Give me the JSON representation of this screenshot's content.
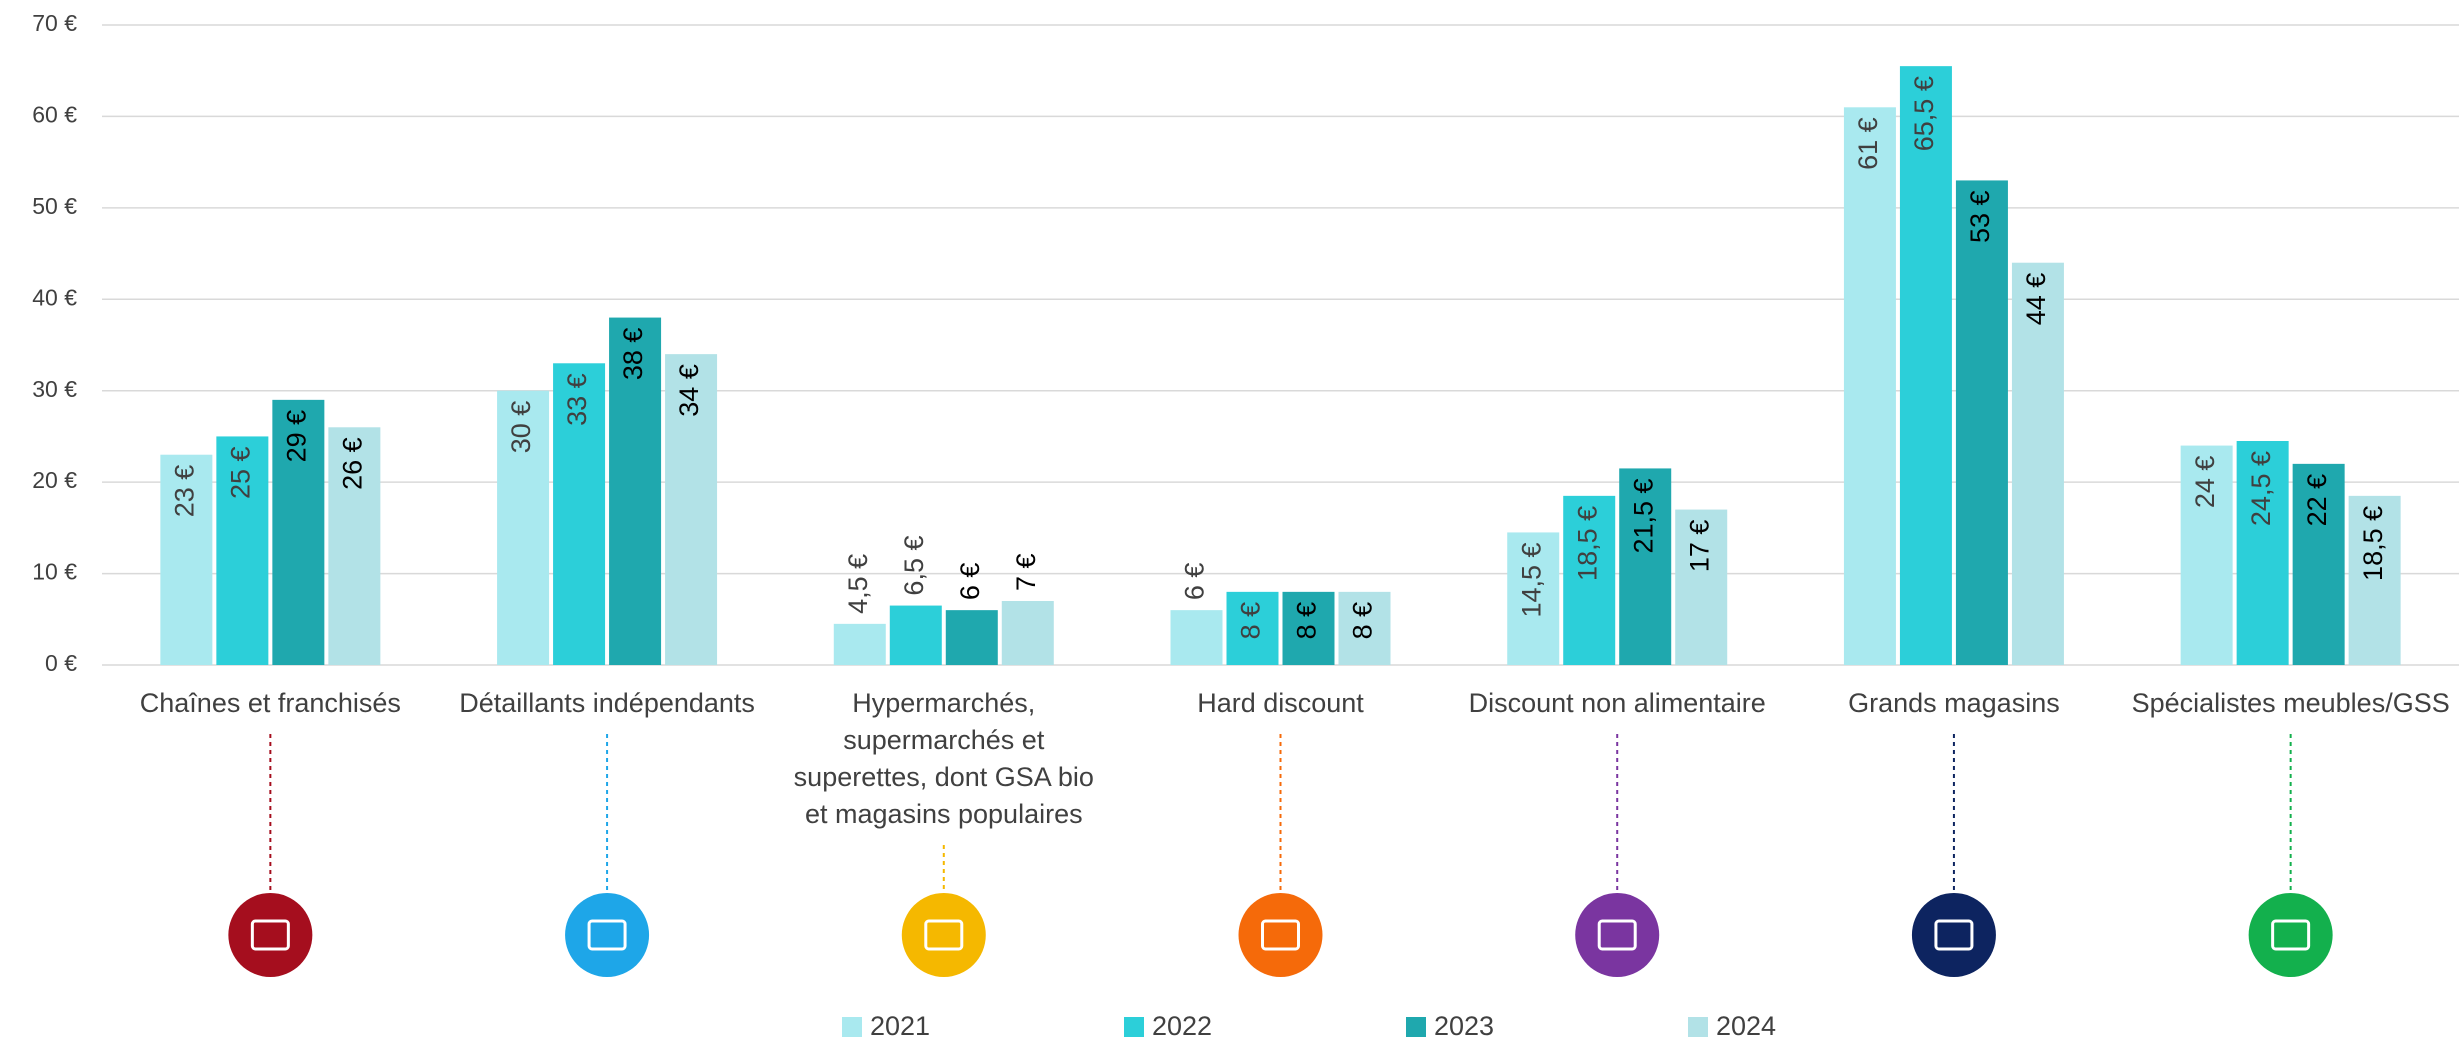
{
  "chart_data": {
    "type": "bar",
    "categories": [
      "Chaînes et franchisés",
      "Détaillants indépendants",
      "Hypermarchés, supermarchés et superettes, dont GSA bio et magasins populaires",
      "Hard discount",
      "Discount non alimentaire",
      "Grands magasins",
      "Spécialistes meubles/GSS"
    ],
    "series": [
      {
        "name": "2021",
        "color": "#a9e9ef",
        "label_color": "#404040",
        "values": [
          23,
          30,
          4.5,
          6,
          14.5,
          61,
          24
        ],
        "value_labels": [
          "23 €",
          "30 €",
          "4,5 €",
          "6 €",
          "14,5 €",
          "61 €",
          "24 €"
        ]
      },
      {
        "name": "2022",
        "color": "#2ccfd9",
        "label_color": "#404040",
        "values": [
          25,
          33,
          6.5,
          8,
          18.5,
          65.5,
          24.5
        ],
        "value_labels": [
          "25 €",
          "33 €",
          "6,5 €",
          "8 €",
          "18,5 €",
          "65,5 €",
          "24,5 €"
        ]
      },
      {
        "name": "2023",
        "color": "#1fa8ae",
        "label_color": "#000000",
        "values": [
          29,
          38,
          6,
          8,
          21.5,
          53,
          22
        ],
        "value_labels": [
          "29 €",
          "38 €",
          "6 €",
          "8 €",
          "21,5 €",
          "53 €",
          "22 €"
        ]
      },
      {
        "name": "2024",
        "color": "#b2e2e7",
        "label_color": "#000000",
        "values": [
          26,
          34,
          7,
          8,
          17,
          44,
          18.5
        ],
        "value_labels": [
          "26 €",
          "34 €",
          "7 €",
          "8 €",
          "17 €",
          "44 €",
          "18,5 €"
        ]
      }
    ],
    "ylim": [
      0,
      70
    ],
    "yticks": [
      {
        "value": 0,
        "label": "0 €"
      },
      {
        "value": 10,
        "label": "10 €"
      },
      {
        "value": 20,
        "label": "20 €"
      },
      {
        "value": 30,
        "label": "30 €"
      },
      {
        "value": 40,
        "label": "40 €"
      },
      {
        "value": 50,
        "label": "50 €"
      },
      {
        "value": 60,
        "label": "60 €"
      },
      {
        "value": 70,
        "label": "70 €"
      }
    ],
    "grid": true,
    "legend": "bottom"
  }
}
